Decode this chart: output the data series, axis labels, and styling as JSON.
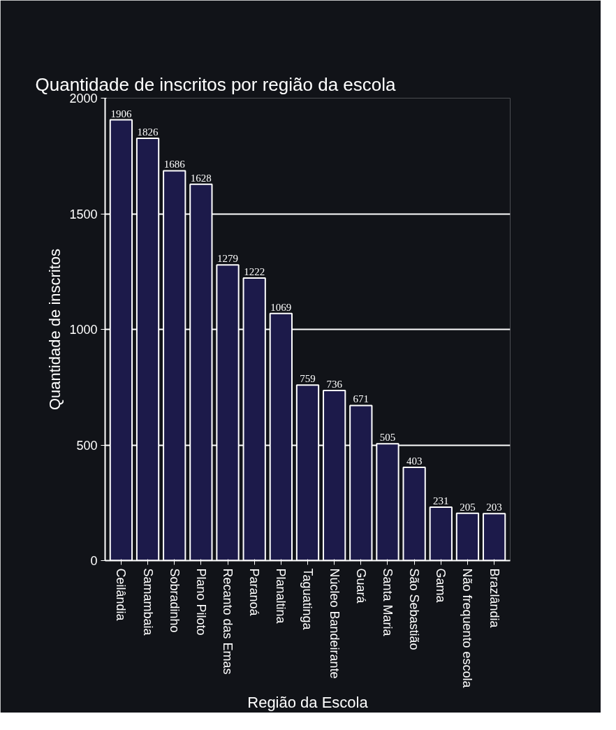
{
  "chart_data": {
    "type": "bar",
    "title": "Quantidade de inscritos por região da escola",
    "xlabel": "Região da Escola",
    "ylabel": "Quantidade de inscritos",
    "categories": [
      "Ceilândia",
      "Samambaia",
      "Sobradinho",
      "Plano Piloto",
      "Recanto das Emas",
      "Paranoá",
      "Planaltina",
      "Taguatinga",
      "Núcleo Bandeirante",
      "Guará",
      "Santa Maria",
      "São Sebastião",
      "Gama",
      "Não frequento escola",
      "Brazlândia"
    ],
    "values": [
      1906,
      1826,
      1686,
      1628,
      1279,
      1222,
      1069,
      759,
      736,
      671,
      505,
      403,
      231,
      205,
      203
    ],
    "color": "#1c1a4a",
    "ylim": [
      0,
      2000
    ],
    "yticks": [
      0,
      500,
      1000,
      1500,
      2000
    ],
    "grid": "y",
    "data_labels": true
  }
}
